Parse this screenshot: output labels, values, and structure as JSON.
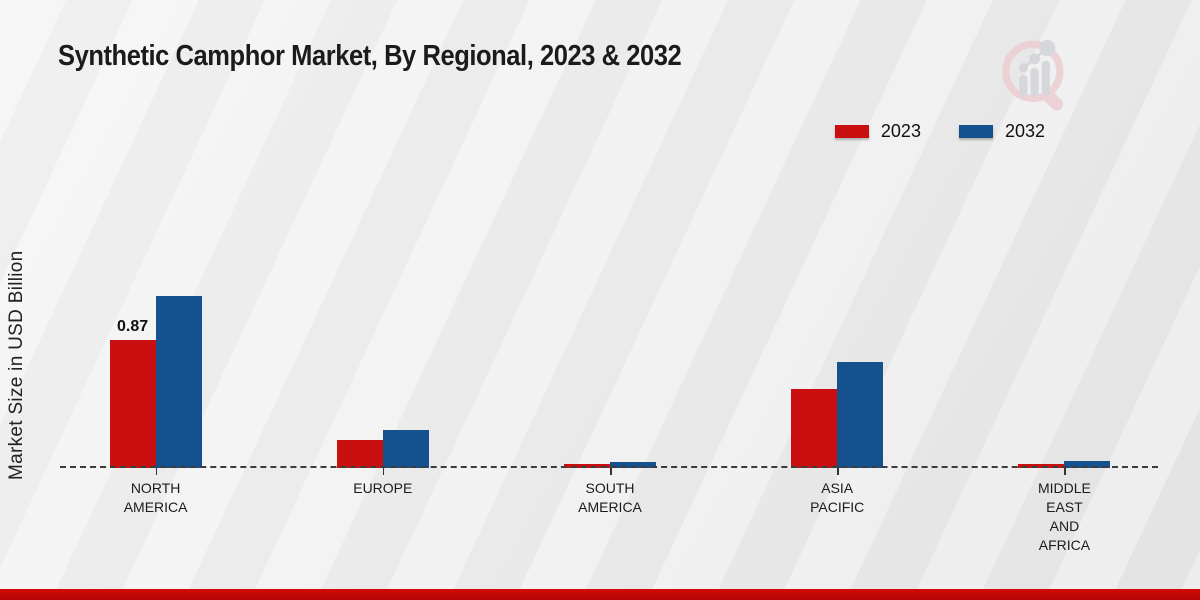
{
  "title": "Synthetic Camphor Market, By Regional, 2023 & 2032",
  "y_axis_title": "Market Size in USD Billion",
  "legend": [
    {
      "label": "2023",
      "color": "#c90f0f"
    },
    {
      "label": "2032",
      "color": "#15518f"
    }
  ],
  "colors": {
    "series_2023": "#c90f0f",
    "series_2032": "#15518f",
    "footer_bar": "#c00707",
    "baseline": "#3c3c3c"
  },
  "watermark": "market-research-magnifier-logo",
  "chart_data": {
    "type": "bar",
    "title": "Synthetic Camphor Market, By Regional, 2023 & 2032",
    "xlabel": "",
    "ylabel": "Market Size in USD Billion",
    "ylim": [
      0,
      1.25
    ],
    "grid": false,
    "legend_position": "top-right",
    "categories": [
      "NORTH AMERICA",
      "EUROPE",
      "SOUTH AMERICA",
      "ASIA PACIFIC",
      "MIDDLE EAST AND AFRICA"
    ],
    "category_label_lines": [
      [
        "NORTH",
        "AMERICA"
      ],
      [
        "EUROPE"
      ],
      [
        "SOUTH",
        "AMERICA"
      ],
      [
        "ASIA",
        "PACIFIC"
      ],
      [
        "MIDDLE",
        "EAST",
        "AND",
        "AFRICA"
      ]
    ],
    "series": [
      {
        "name": "2023",
        "color": "#c90f0f",
        "values": [
          0.87,
          0.19,
          0.03,
          0.54,
          0.03
        ],
        "data_labels": [
          "0.87",
          null,
          null,
          null,
          null
        ]
      },
      {
        "name": "2032",
        "color": "#15518f",
        "values": [
          1.17,
          0.26,
          0.04,
          0.72,
          0.05
        ],
        "data_labels": [
          null,
          null,
          null,
          null,
          null
        ]
      }
    ]
  }
}
